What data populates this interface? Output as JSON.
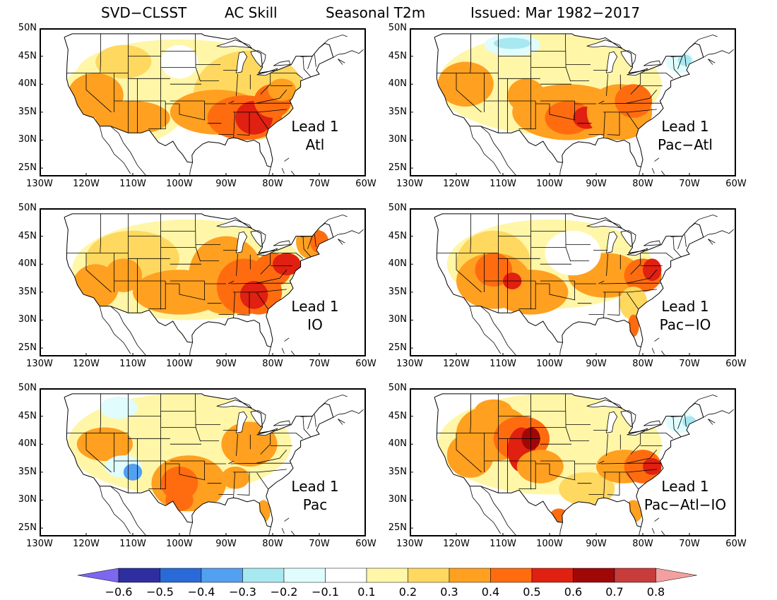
{
  "header": {
    "title_parts": [
      "SVD−CLSST",
      "AC Skill",
      "Seasonal T2m",
      "Issued: Mar 1982−2017"
    ]
  },
  "axes": {
    "lat_labels": [
      "50N",
      "45N",
      "40N",
      "35N",
      "30N",
      "25N"
    ],
    "lon_labels": [
      "130W",
      "120W",
      "110W",
      "100W",
      "90W",
      "80W",
      "70W",
      "60W"
    ]
  },
  "map_extent": {
    "lon_min": -130,
    "lon_max": -60,
    "lat_min": 23.5,
    "lat_max": 50
  },
  "panels": [
    {
      "label_line1": "Lead 1",
      "label_line2": "Atl",
      "pattern": "atl"
    },
    {
      "label_line1": "Lead 1",
      "label_line2": "Pac−Atl",
      "pattern": "pacatl"
    },
    {
      "label_line1": "Lead 1",
      "label_line2": "IO",
      "pattern": "io"
    },
    {
      "label_line1": "Lead 1",
      "label_line2": "Pac−IO",
      "pattern": "pacio"
    },
    {
      "label_line1": "Lead 1",
      "label_line2": "Pac",
      "pattern": "pac"
    },
    {
      "label_line1": "Lead 1",
      "label_line2": "Pac−Atl−IO",
      "pattern": "pacatlio"
    }
  ],
  "colorbar": {
    "labels": [
      "−0.6",
      "−0.5",
      "−0.4",
      "−0.3",
      "−0.2",
      "−0.1",
      "0.1",
      "0.2",
      "0.3",
      "0.4",
      "0.5",
      "0.6",
      "0.7",
      "0.8"
    ],
    "colors": [
      "#7b68ee",
      "#2e2ea0",
      "#2a6ad8",
      "#54a0f0",
      "#a8e8f0",
      "#e0fcfc",
      "#ffffff",
      "#fff6a8",
      "#ffd860",
      "#ffa020",
      "#ff6c10",
      "#e02010",
      "#a00808",
      "#c83c3c",
      "#f4a0a0"
    ]
  }
}
